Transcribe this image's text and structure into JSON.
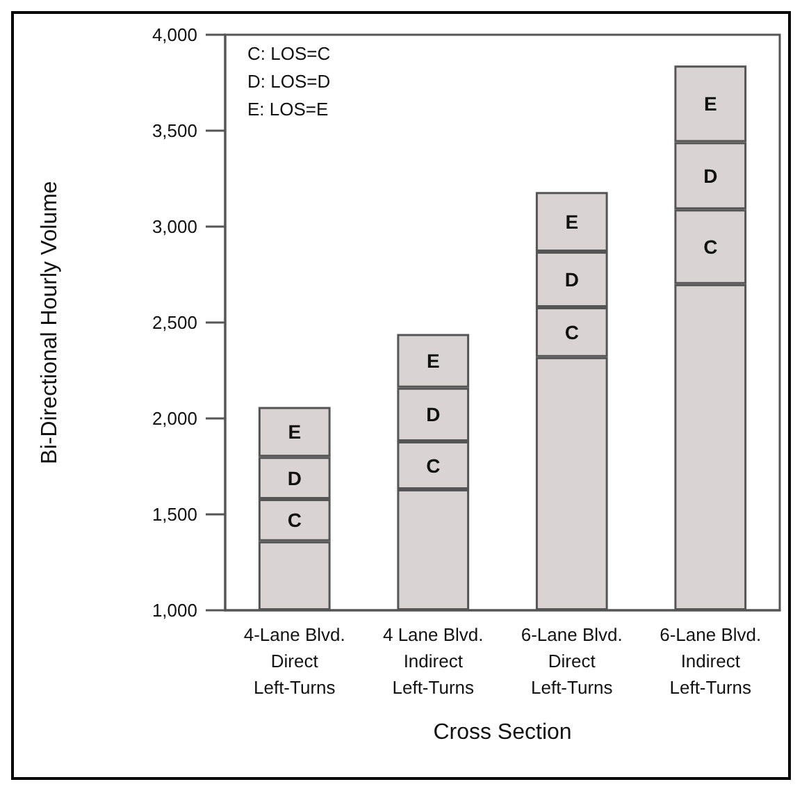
{
  "chart_data": {
    "type": "bar",
    "xlabel": "Cross Section",
    "ylabel": "Bi-Directional Hourly Volume",
    "categories": [
      "4-Lane Blvd.\nDirect\nLeft-Turns",
      "4 Lane Blvd.\nIndirect\nLeft-Turns",
      "6-Lane Blvd.\nDirect\nLeft-Turns",
      "6-Lane Blvd.\nIndirect\nLeft-Turns"
    ],
    "series": [
      {
        "color": "#d9d3d3",
        "base": [
          1000,
          1000,
          1000,
          1000
        ],
        "values": [
          360,
          630,
          1320,
          1700
        ]
      },
      {
        "name": "C",
        "color": "#d9d3d3",
        "base": [
          1360,
          1630,
          2320,
          2700
        ],
        "values": [
          220,
          250,
          260,
          390
        ]
      },
      {
        "name": "D",
        "color": "#d9d3d3",
        "base": [
          1580,
          1880,
          2580,
          3090
        ],
        "values": [
          220,
          280,
          290,
          350
        ]
      },
      {
        "name": "E",
        "color": "#d9d3d3",
        "base": [
          1800,
          2160,
          2870,
          3440
        ],
        "values": [
          260,
          280,
          310,
          400
        ]
      }
    ],
    "ylim": [
      1000,
      4000
    ],
    "yticks": [
      {
        "value": 1000,
        "label": "1,000"
      },
      {
        "value": 1500,
        "label": "1,500"
      },
      {
        "value": 2000,
        "label": "2,000"
      },
      {
        "value": 2500,
        "label": "2,500"
      },
      {
        "value": 3000,
        "label": "3,000"
      },
      {
        "value": 3500,
        "label": "3,500"
      },
      {
        "value": 4000,
        "label": "4,000"
      }
    ],
    "annotations": [
      "C: LOS=C",
      "D: LOS=D",
      "E: LOS=E"
    ],
    "grid": false,
    "legend": false
  }
}
